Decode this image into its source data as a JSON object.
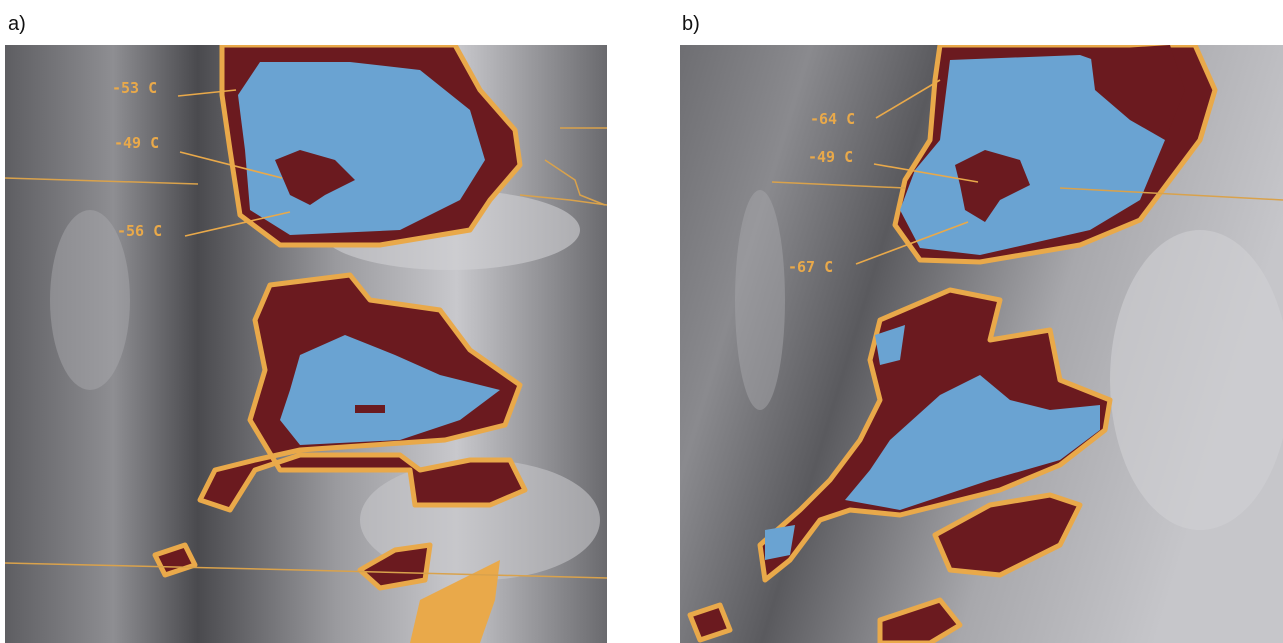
{
  "panels": [
    {
      "label": "a)",
      "annotations": [
        "-53 C",
        "-49 C",
        "-56 C"
      ]
    },
    {
      "label": "b)",
      "annotations": [
        "-64 C",
        "-49 C",
        "-67 C"
      ]
    }
  ]
}
